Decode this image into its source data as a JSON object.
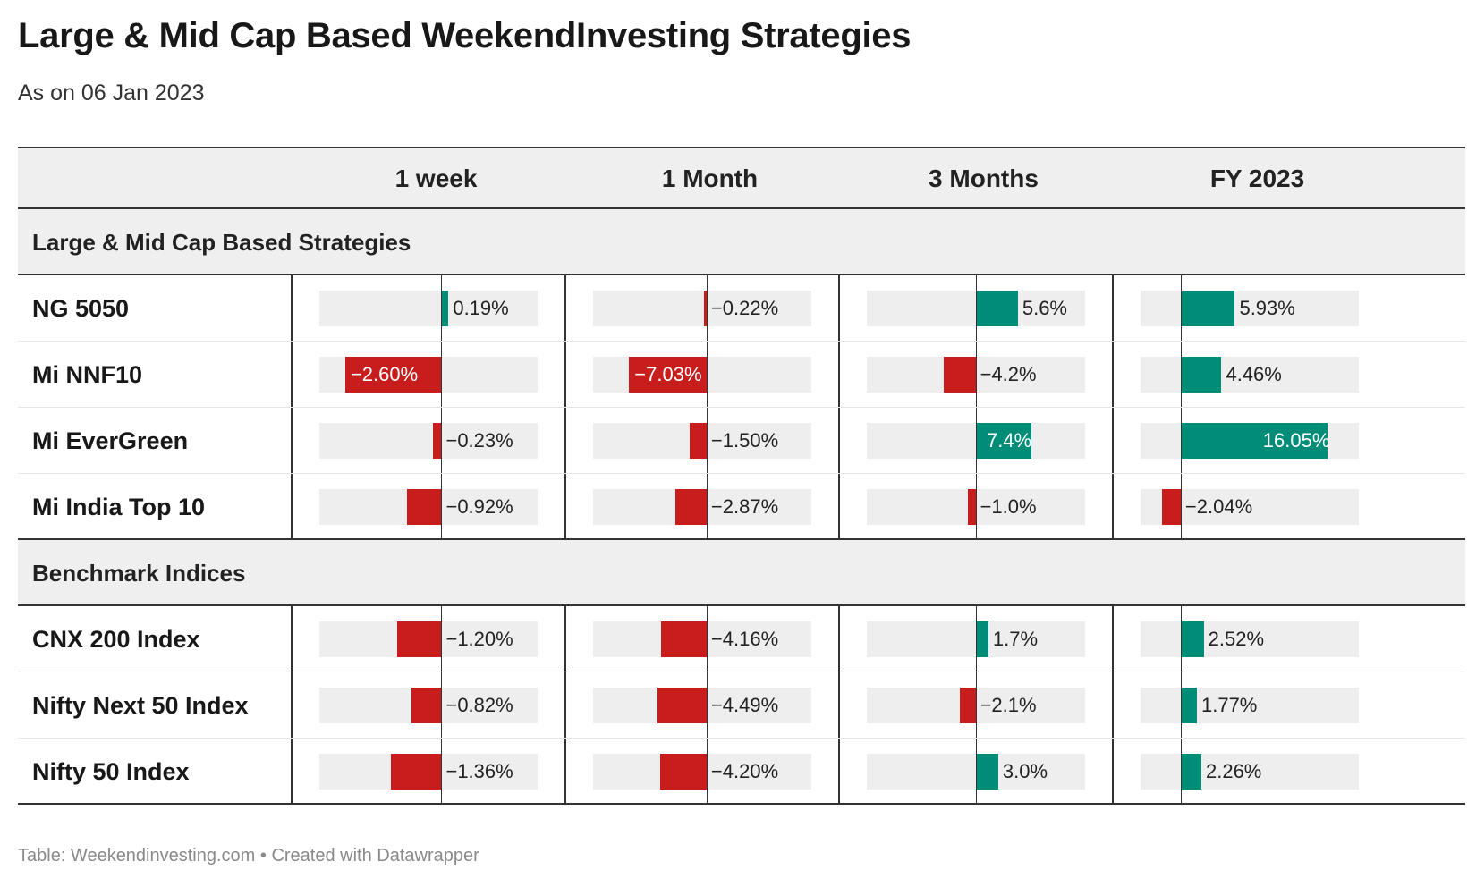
{
  "title": "Large & Mid Cap Based WeekendInvesting Strategies",
  "subtitle": "As on 06 Jan 2023",
  "footer": "Table: Weekendinvesting.com • Created with Datawrapper",
  "colors": {
    "negative": "#c71e1d",
    "positive": "#008d78",
    "bar_background": "#eeeeee",
    "header_background": "#efefef"
  },
  "chart_data": {
    "type": "table",
    "columns": [
      "1 week",
      "1 Month",
      "3 Months",
      "FY 2023"
    ],
    "groups": [
      {
        "name": "Large & Mid Cap Based Strategies",
        "rows": [
          {
            "name": "NG 5050",
            "values": [
              0.19,
              -0.22,
              5.6,
              5.93
            ],
            "labels": [
              "0.19%",
              "−0.22%",
              "5.6%",
              "5.93%"
            ]
          },
          {
            "name": "Mi NNF10",
            "values": [
              -2.6,
              -7.03,
              -4.2,
              4.46
            ],
            "labels": [
              "−2.60%",
              "−7.03%",
              "−4.2%",
              "4.46%"
            ]
          },
          {
            "name": "Mi EverGreen",
            "values": [
              -0.23,
              -1.5,
              7.4,
              16.05
            ],
            "labels": [
              "−0.23%",
              "−1.50%",
              "7.4%",
              "16.05%"
            ]
          },
          {
            "name": "Mi India Top 10",
            "values": [
              -0.92,
              -2.87,
              -1.0,
              -2.04
            ],
            "labels": [
              "−0.92%",
              "−2.87%",
              "−1.0%",
              "−2.04%"
            ]
          }
        ]
      },
      {
        "name": "Benchmark Indices",
        "rows": [
          {
            "name": "CNX 200 Index",
            "values": [
              -1.2,
              -4.16,
              1.7,
              2.52
            ],
            "labels": [
              "−1.20%",
              "−4.16%",
              "1.7%",
              "2.52%"
            ]
          },
          {
            "name": "Nifty Next 50 Index",
            "values": [
              -0.82,
              -4.49,
              -2.1,
              1.77
            ],
            "labels": [
              "−0.82%",
              "−4.49%",
              "−2.1%",
              "1.77%"
            ]
          },
          {
            "name": "Nifty 50 Index",
            "values": [
              -1.36,
              -4.2,
              3.0,
              2.26
            ],
            "labels": [
              "−1.36%",
              "−4.20%",
              "3.0%",
              "2.26%"
            ]
          }
        ]
      }
    ],
    "column_ranges": [
      [
        -3.3,
        2.6
      ],
      [
        -10.3,
        9.5
      ],
      [
        -14.4,
        14.5
      ],
      [
        -4.4,
        19.5
      ]
    ]
  }
}
